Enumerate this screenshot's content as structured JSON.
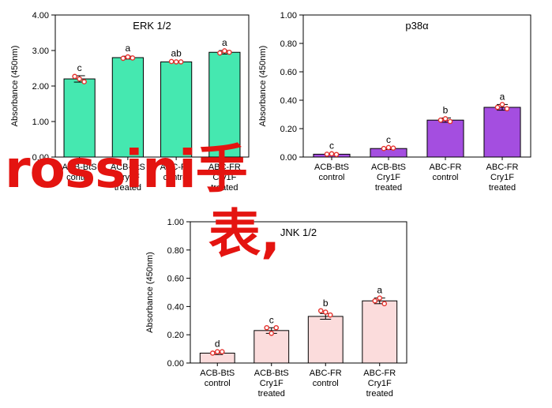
{
  "chart_data": [
    {
      "type": "bar",
      "title": "ERK 1/2",
      "ylabel": "Absorbance (450nm)",
      "ylim": [
        0,
        4
      ],
      "yticks": [
        "0.00",
        "1.00",
        "2.00",
        "3.00",
        "4.00"
      ],
      "yticks_values": [
        0,
        1,
        2,
        3,
        4
      ],
      "categories": [
        [
          "ACB-BtS",
          "control"
        ],
        [
          "ACB-BtS",
          "Cry1F",
          "treated"
        ],
        [
          "ABC-FR",
          "control"
        ],
        [
          "ABC-FR",
          "Cry1F",
          "treated"
        ]
      ],
      "values": [
        2.2,
        2.8,
        2.68,
        2.95
      ],
      "errors": [
        0.09,
        0.04,
        0.02,
        0.05
      ],
      "points": [
        [
          2.27,
          2.2,
          2.12
        ],
        [
          2.78,
          2.82,
          2.79
        ],
        [
          2.69,
          2.68,
          2.68
        ],
        [
          2.93,
          2.99,
          2.95
        ]
      ],
      "letters": [
        "c",
        "a",
        "ab",
        "a"
      ],
      "bar_color": "#45e8b0"
    },
    {
      "type": "bar",
      "title": "p38α",
      "ylabel": "Absorbance (450nm)",
      "ylim": [
        0,
        1
      ],
      "yticks": [
        "0.00",
        "0.20",
        "0.40",
        "0.60",
        "0.80",
        "1.00"
      ],
      "yticks_values": [
        0,
        0.2,
        0.4,
        0.6,
        0.8,
        1.0
      ],
      "categories": [
        [
          "ACB-BtS",
          "control"
        ],
        [
          "ACB-BtS",
          "Cry1F",
          "treated"
        ],
        [
          "ABC-FR",
          "control"
        ],
        [
          "ABC-FR",
          "Cry1F",
          "treated"
        ]
      ],
      "values": [
        0.02,
        0.06,
        0.26,
        0.35
      ],
      "errors": [
        0.005,
        0.007,
        0.015,
        0.02
      ],
      "points": [
        [
          0.02,
          0.023,
          0.018
        ],
        [
          0.06,
          0.067,
          0.063
        ],
        [
          0.26,
          0.27,
          0.25
        ],
        [
          0.35,
          0.37,
          0.34
        ]
      ],
      "letters": [
        "c",
        "c",
        "b",
        "a"
      ],
      "bar_color": "#a44ee0"
    },
    {
      "type": "bar",
      "title": "JNK 1/2",
      "ylabel": "Absorbance (450nm)",
      "ylim": [
        0,
        1
      ],
      "yticks": [
        "0.00",
        "0.20",
        "0.40",
        "0.60",
        "0.80",
        "1.00"
      ],
      "yticks_values": [
        0,
        0.2,
        0.4,
        0.6,
        0.8,
        1.0
      ],
      "categories": [
        [
          "ACB-BtS",
          "control"
        ],
        [
          "ACB-BtS",
          "Cry1F",
          "treated"
        ],
        [
          "ABC-FR",
          "control"
        ],
        [
          "ABC-FR",
          "Cry1F",
          "treated"
        ]
      ],
      "values": [
        0.07,
        0.23,
        0.33,
        0.44
      ],
      "errors": [
        0.01,
        0.02,
        0.02,
        0.02
      ],
      "points": [
        [
          0.07,
          0.08,
          0.08
        ],
        [
          0.25,
          0.21,
          0.25
        ],
        [
          0.37,
          0.36,
          0.34
        ],
        [
          0.44,
          0.46,
          0.42
        ]
      ],
      "letters": [
        "d",
        "c",
        "b",
        "a"
      ],
      "bar_color": "#fbdcdc"
    }
  ],
  "point_color": "#e5322d",
  "watermark": {
    "line1": "rossini手",
    "line2": "表,"
  }
}
